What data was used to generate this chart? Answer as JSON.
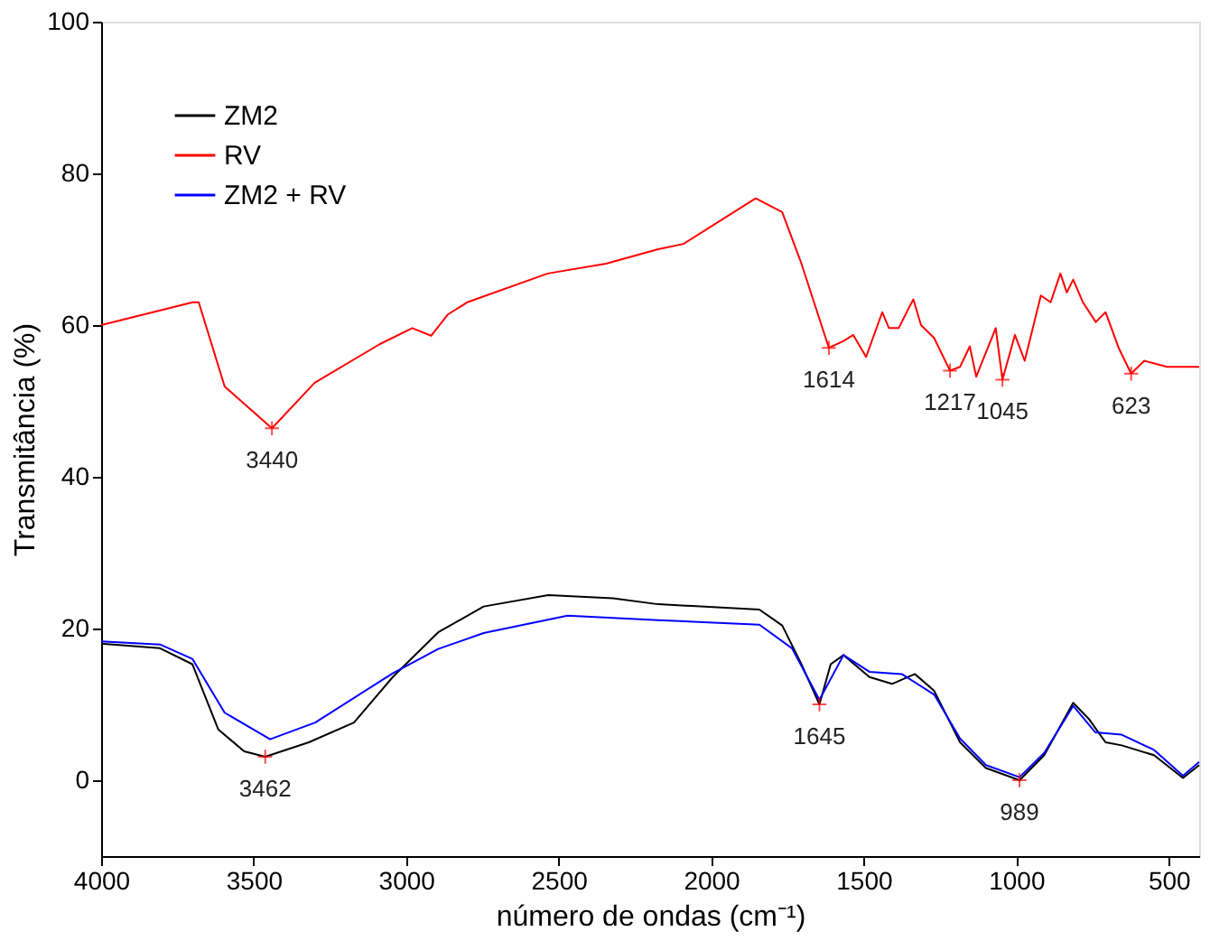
{
  "chart_data": {
    "type": "line",
    "xlabel": "número de ondas (cm⁻¹)",
    "ylabel": "Transmitância (%)",
    "xlim": [
      4000,
      400
    ],
    "ylim": [
      -10,
      100
    ],
    "xticks": [
      4000,
      3500,
      3000,
      2500,
      2000,
      1500,
      1000,
      500
    ],
    "yticks": [
      0,
      20,
      40,
      60,
      80,
      100
    ],
    "grid": false,
    "legend": "top left",
    "line_style": "solid",
    "marker": "none",
    "series": [
      {
        "name": "ZM2",
        "color": "#000000",
        "x": [
          4000,
          3807,
          3701,
          3616,
          3531,
          3462,
          3319,
          3171,
          3044,
          2895,
          2746,
          2534,
          2322,
          2174,
          1842,
          1767,
          1704,
          1645,
          1608,
          1566,
          1481,
          1407,
          1332,
          1269,
          1184,
          1099,
          989,
          908,
          813,
          760,
          707,
          654,
          548,
          453,
          400
        ],
        "values": [
          18.0,
          17.4,
          15.3,
          6.7,
          3.8,
          3.1,
          5.0,
          7.6,
          13.6,
          19.5,
          22.9,
          24.4,
          24.0,
          23.2,
          22.5,
          20.4,
          15.3,
          10.0,
          15.3,
          16.5,
          13.6,
          12.7,
          14.0,
          11.8,
          5.0,
          1.6,
          0.0,
          3.3,
          10.2,
          8.0,
          5.0,
          4.6,
          3.3,
          0.3,
          2.0
        ]
      },
      {
        "name": "RV",
        "color": "#ff0000",
        "x": [
          4000,
          3700,
          3680,
          3595,
          3440,
          3300,
          3086,
          2980,
          2918,
          2863,
          2800,
          2536,
          2345,
          2174,
          2091,
          1854,
          1767,
          1704,
          1614,
          1566,
          1534,
          1492,
          1439,
          1417,
          1385,
          1354,
          1337,
          1312,
          1269,
          1217,
          1184,
          1152,
          1131,
          1067,
          1045,
          1004,
          972,
          919,
          887,
          855,
          834,
          813,
          781,
          739,
          707,
          664,
          623,
          580,
          505,
          400
        ],
        "values": [
          60,
          63,
          63,
          51.9,
          46.4,
          52.4,
          57.5,
          59.6,
          58.6,
          61.4,
          63,
          66.8,
          68.1,
          70,
          70.7,
          76.7,
          74.9,
          68.1,
          57.0,
          57.9,
          58.7,
          55.8,
          61.7,
          59.6,
          59.6,
          62.1,
          63.4,
          60.0,
          58.3,
          54.0,
          54.5,
          57.2,
          53.2,
          59.6,
          52.8,
          58.7,
          55.3,
          63.9,
          63.0,
          66.8,
          64.3,
          66.0,
          63.0,
          60.4,
          61.7,
          57.0,
          53.6,
          55.3,
          54.5,
          54.5
        ]
      },
      {
        "name": "ZM2 + RV",
        "color": "#0000ff",
        "x": [
          4000,
          3807,
          3701,
          3595,
          3446,
          3298,
          3044,
          2895,
          2746,
          2471,
          2174,
          1842,
          1735,
          1645,
          1566,
          1481,
          1375,
          1269,
          1184,
          1099,
          989,
          908,
          813,
          740,
          654,
          548,
          453,
          400
        ],
        "values": [
          18.3,
          17.9,
          16.0,
          8.9,
          5.4,
          7.6,
          14.1,
          17.3,
          19.4,
          21.7,
          21.1,
          20.5,
          17.4,
          10.6,
          16.5,
          14.3,
          14.0,
          11.3,
          5.5,
          2.0,
          0.4,
          3.6,
          9.8,
          6.3,
          6.0,
          4.0,
          0.6,
          2.4
        ]
      }
    ],
    "annotations": [
      {
        "text": "3440",
        "x": 3440,
        "y": 46.4
      },
      {
        "text": "1614",
        "x": 1614,
        "y": 57.0
      },
      {
        "text": "1217",
        "x": 1217,
        "y": 54.0
      },
      {
        "text": "1045",
        "x": 1045,
        "y": 52.8
      },
      {
        "text": "623",
        "x": 623,
        "y": 53.6
      },
      {
        "text": "3462",
        "x": 3462,
        "y": 3.1
      },
      {
        "text": "1645",
        "x": 1645,
        "y": 10.0
      },
      {
        "text": "989",
        "x": 989,
        "y": 0.0
      }
    ]
  }
}
